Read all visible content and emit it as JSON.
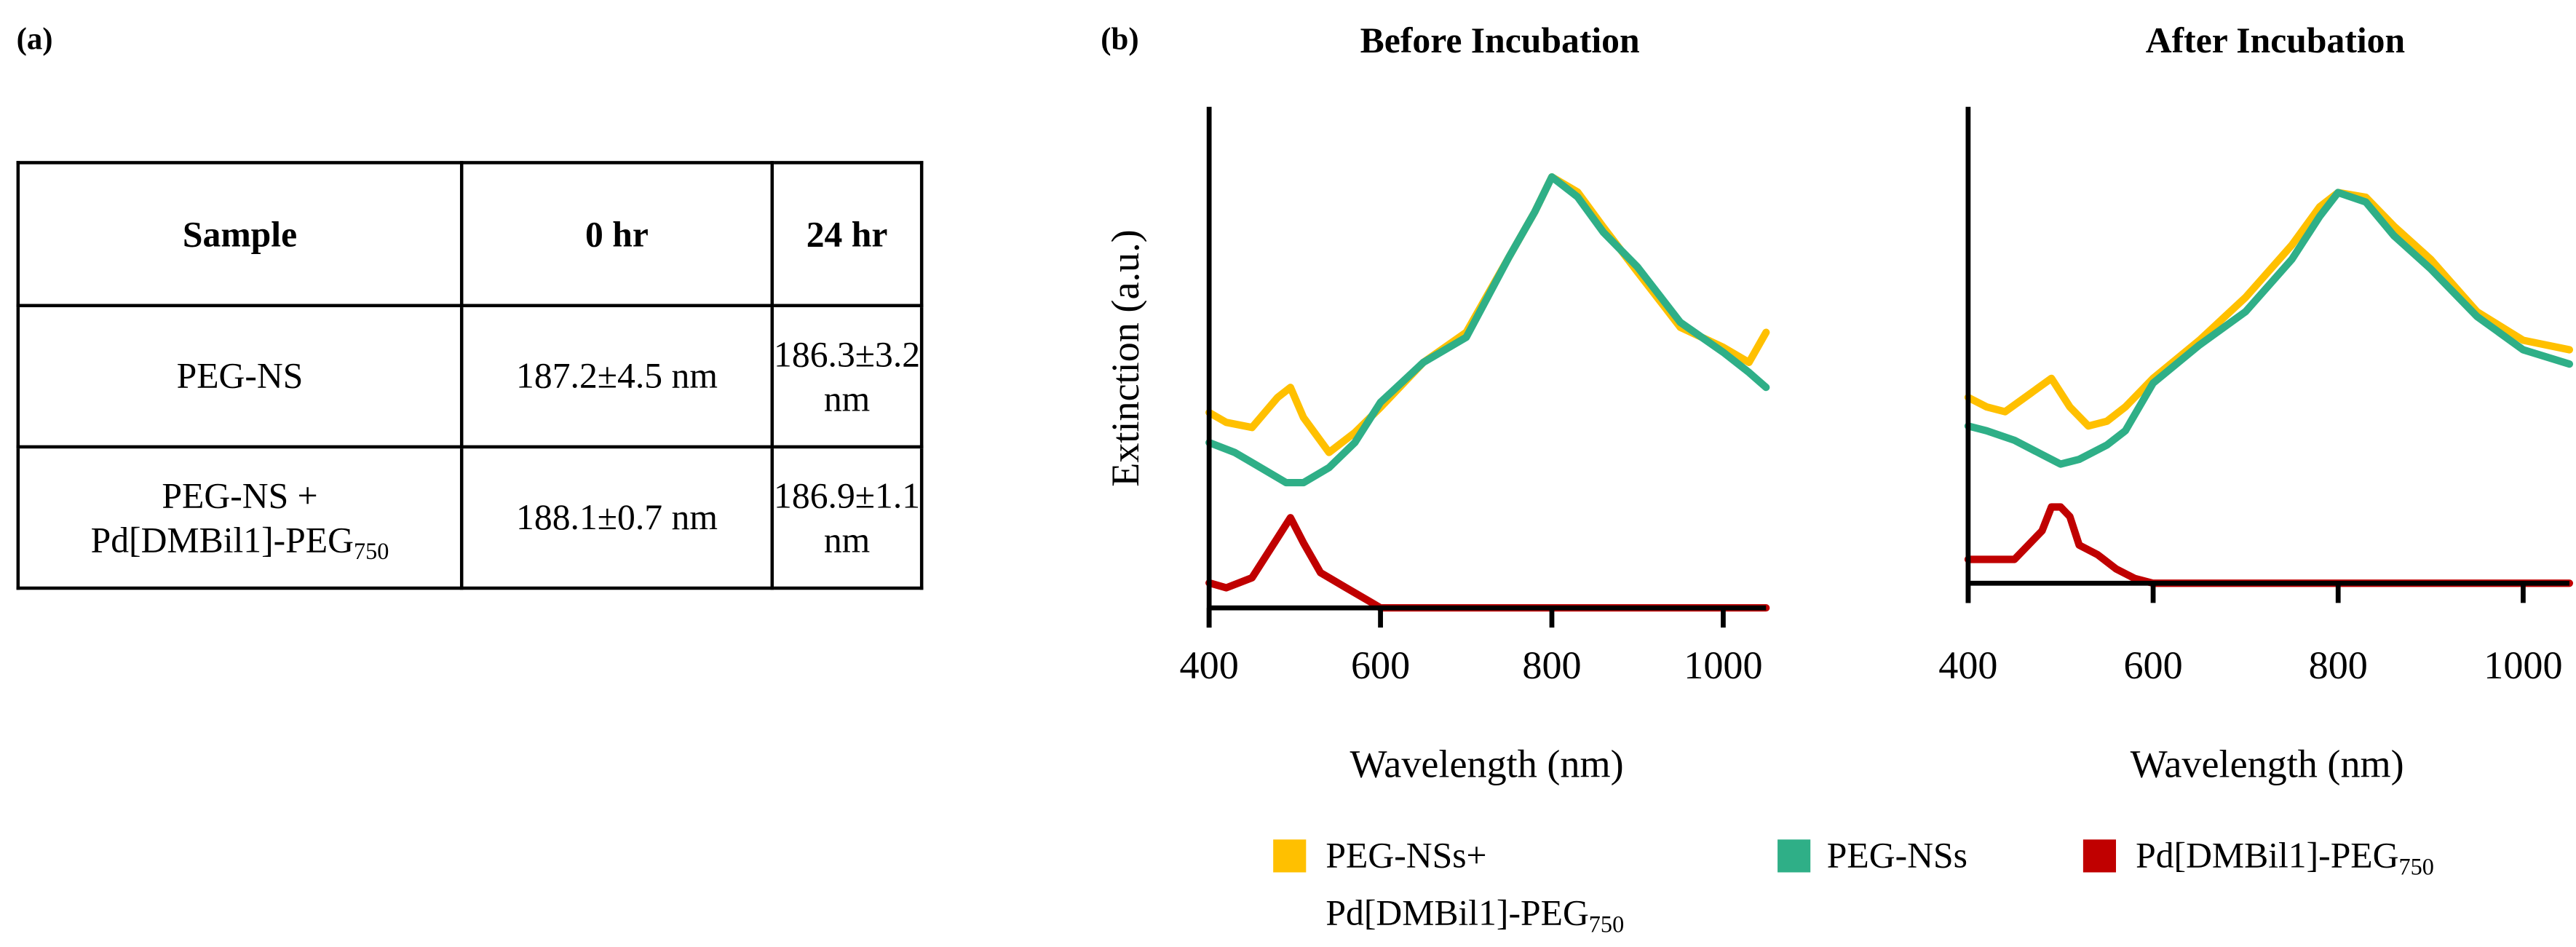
{
  "panel_a_label": "(a)",
  "panel_b_label": "(b)",
  "table": {
    "headers": [
      "Sample",
      "0 hr",
      "24 hr"
    ],
    "rows": [
      {
        "sample": "PEG-NS",
        "sample_sub": "",
        "sample_line2": "",
        "t0": "187.2±4.5 nm",
        "t24": "186.3±3.2 nm"
      },
      {
        "sample": "PEG-NS +",
        "sample_line2": "Pd[DMBil1]-PEG",
        "sample_sub": "750",
        "t0": "188.1±0.7 nm",
        "t24": "186.9±1.1 nm"
      }
    ]
  },
  "legend": [
    {
      "line1": "PEG-NSs+",
      "line2": "Pd[DMBil1]-PEG",
      "sub": "750",
      "color": "#FFC000"
    },
    {
      "line1": "PEG-NSs",
      "line2": "",
      "sub": "",
      "color": "#2FAF87"
    },
    {
      "line1": "Pd[DMBil1]-PEG",
      "line2": "",
      "sub": "750",
      "color": "#C00000"
    }
  ],
  "chart_data": [
    {
      "type": "line",
      "title": "Before Incubation",
      "xlabel": "Wavelength (nm)",
      "ylabel": "Extinction  (a.u.)",
      "xlim": [
        400,
        1050
      ],
      "ylim": [
        0,
        1
      ],
      "xticks": [
        "400",
        "600",
        "800",
        "1000"
      ],
      "yticks": [],
      "grid": false,
      "legend_position": "bottom",
      "series": [
        {
          "name": "PEG-NSs+ Pd[DMBil1]-PEG750",
          "color": "#FFC000",
          "x": [
            400,
            420,
            450,
            480,
            495,
            510,
            540,
            570,
            600,
            650,
            700,
            750,
            780,
            800,
            830,
            860,
            900,
            950,
            1000,
            1030,
            1050
          ],
          "y": [
            0.39,
            0.37,
            0.36,
            0.42,
            0.44,
            0.38,
            0.31,
            0.35,
            0.4,
            0.49,
            0.55,
            0.7,
            0.79,
            0.86,
            0.83,
            0.76,
            0.67,
            0.56,
            0.52,
            0.49,
            0.55
          ]
        },
        {
          "name": "PEG-NSs",
          "color": "#2FAF87",
          "x": [
            400,
            430,
            460,
            490,
            510,
            540,
            570,
            600,
            650,
            700,
            750,
            780,
            800,
            830,
            860,
            900,
            950,
            1000,
            1030,
            1050
          ],
          "y": [
            0.33,
            0.31,
            0.28,
            0.25,
            0.25,
            0.28,
            0.33,
            0.41,
            0.49,
            0.54,
            0.7,
            0.79,
            0.86,
            0.82,
            0.75,
            0.68,
            0.57,
            0.51,
            0.47,
            0.44
          ]
        },
        {
          "name": "Pd[DMBil1]-PEG750",
          "color": "#C00000",
          "x": [
            400,
            420,
            450,
            480,
            495,
            510,
            530,
            560,
            590,
            600,
            1050
          ],
          "y": [
            0.05,
            0.04,
            0.06,
            0.14,
            0.18,
            0.13,
            0.07,
            0.04,
            0.01,
            0,
            0
          ]
        }
      ]
    },
    {
      "type": "line",
      "title": "After Incubation",
      "xlabel": "Wavelength (nm)",
      "ylabel": "",
      "xlim": [
        400,
        1050
      ],
      "ylim": [
        0,
        1
      ],
      "xticks": [
        "400",
        "600",
        "800",
        "1000"
      ],
      "yticks": [],
      "grid": false,
      "legend_position": "bottom",
      "series": [
        {
          "name": "PEG-NSs+ Pd[DMBil1]-PEG750",
          "color": "#FFC000",
          "x": [
            400,
            420,
            440,
            490,
            510,
            530,
            550,
            570,
            600,
            650,
            700,
            750,
            780,
            800,
            830,
            860,
            900,
            950,
            1000,
            1050
          ],
          "y": [
            0.39,
            0.37,
            0.36,
            0.43,
            0.37,
            0.33,
            0.34,
            0.37,
            0.43,
            0.51,
            0.6,
            0.71,
            0.79,
            0.82,
            0.81,
            0.75,
            0.68,
            0.57,
            0.51,
            0.49
          ]
        },
        {
          "name": "PEG-NSs",
          "color": "#2FAF87",
          "x": [
            400,
            420,
            450,
            480,
            500,
            520,
            550,
            570,
            600,
            650,
            700,
            750,
            780,
            800,
            830,
            860,
            900,
            950,
            1000,
            1050
          ],
          "y": [
            0.33,
            0.32,
            0.3,
            0.27,
            0.25,
            0.26,
            0.29,
            0.32,
            0.42,
            0.5,
            0.57,
            0.68,
            0.77,
            0.82,
            0.8,
            0.73,
            0.66,
            0.56,
            0.49,
            0.46
          ]
        },
        {
          "name": "Pd[DMBil1]-PEG750",
          "color": "#C00000",
          "x": [
            400,
            420,
            450,
            480,
            490,
            500,
            510,
            520,
            540,
            560,
            580,
            600,
            1050
          ],
          "y": [
            0.05,
            0.05,
            0.05,
            0.11,
            0.16,
            0.16,
            0.14,
            0.08,
            0.06,
            0.03,
            0.01,
            0,
            0
          ]
        }
      ]
    }
  ]
}
